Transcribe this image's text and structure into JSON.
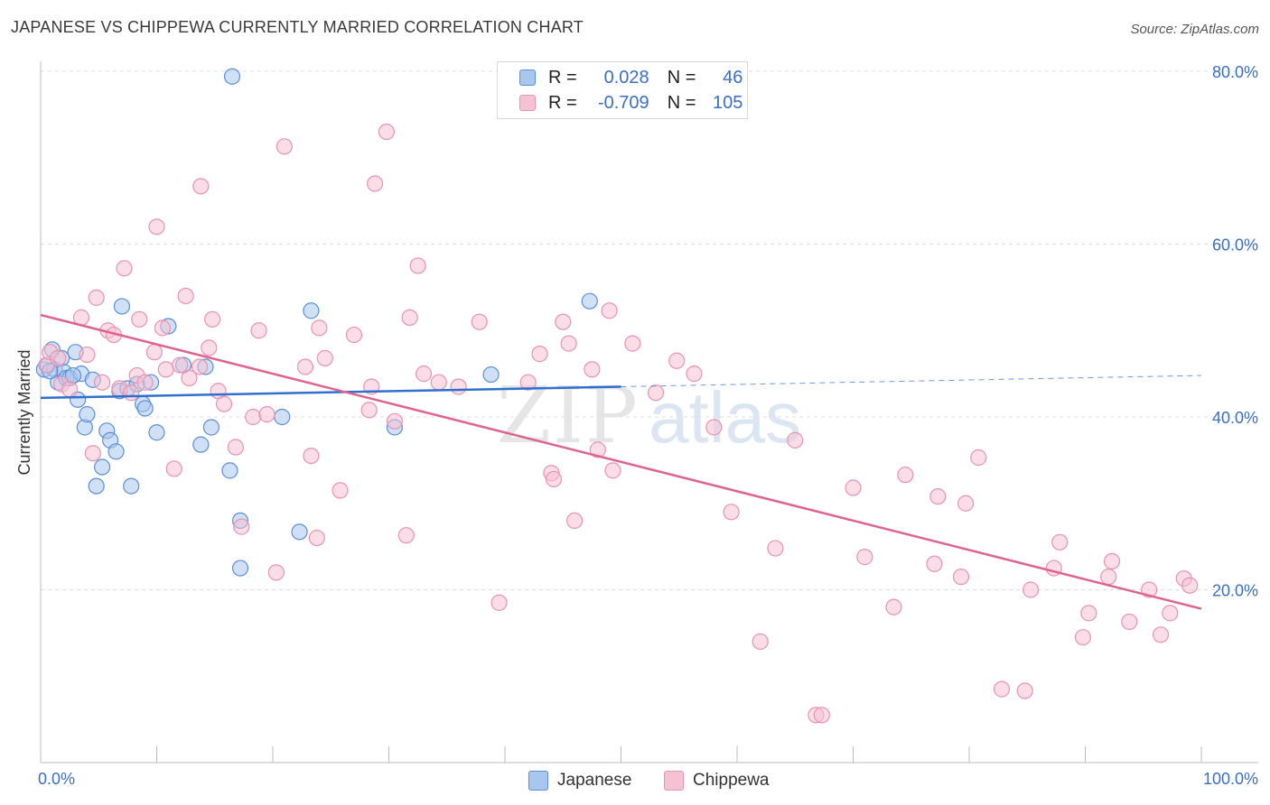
{
  "title": "JAPANESE VS CHIPPEWA CURRENTLY MARRIED CORRELATION CHART",
  "source": "Source: ZipAtlas.com",
  "legend": {
    "japanese": {
      "r_label": "R =",
      "r_value": "0.028",
      "n_label": "N =",
      "n_value": "46"
    },
    "chippewa": {
      "r_label": "R =",
      "r_value": "-0.709",
      "n_label": "N =",
      "n_value": "105"
    }
  },
  "colors": {
    "japanese_fill": "#a9c6ef",
    "japanese_stroke": "#5b8fd6",
    "japanese_line": "#2f6fcf",
    "chippewa_fill": "#f6c1d2",
    "chippewa_stroke": "#e893b0",
    "chippewa_line": "#e0638f",
    "axis_text": "#3a6fc4",
    "grid": "#dcdcdc"
  },
  "watermark": {
    "part1": "ZIP",
    "part2": "atlas"
  },
  "chart_data": {
    "type": "scatter",
    "title": "JAPANESE VS CHIPPEWA CURRENTLY MARRIED CORRELATION CHART",
    "xlabel": "",
    "ylabel": "Currently Married",
    "xlim": [
      0,
      100
    ],
    "ylim": [
      0,
      80
    ],
    "x_tick_labels": [
      "0.0%",
      "100.0%"
    ],
    "y_ticks": [
      20,
      40,
      60,
      80
    ],
    "y_tick_labels": [
      "20.0%",
      "40.0%",
      "60.0%",
      "80.0%"
    ],
    "grid": true,
    "legend_position": "bottom",
    "series": [
      {
        "name": "Japanese",
        "points": [
          [
            0.3,
            45.5
          ],
          [
            0.6,
            46
          ],
          [
            1.0,
            47.8
          ],
          [
            1.2,
            45.5
          ],
          [
            1.5,
            44
          ],
          [
            1.8,
            46.8
          ],
          [
            2.0,
            45.2
          ],
          [
            2.2,
            44.5
          ],
          [
            2.5,
            44.5
          ],
          [
            3.0,
            47.5
          ],
          [
            3.2,
            42
          ],
          [
            3.5,
            45
          ],
          [
            3.8,
            38.8
          ],
          [
            4.0,
            40.3
          ],
          [
            4.5,
            44.3
          ],
          [
            4.8,
            32
          ],
          [
            5.3,
            34.2
          ],
          [
            5.7,
            38.4
          ],
          [
            6.0,
            37.3
          ],
          [
            6.5,
            36
          ],
          [
            6.8,
            43
          ],
          [
            7.0,
            52.8
          ],
          [
            7.5,
            43.3
          ],
          [
            7.8,
            32
          ],
          [
            8.3,
            43.8
          ],
          [
            8.8,
            41.5
          ],
          [
            9.0,
            41
          ],
          [
            9.5,
            44
          ],
          [
            10.0,
            38.2
          ],
          [
            11.0,
            50.5
          ],
          [
            12.3,
            46
          ],
          [
            13.8,
            36.8
          ],
          [
            14.2,
            45.8
          ],
          [
            14.7,
            38.8
          ],
          [
            16.3,
            33.8
          ],
          [
            16.5,
            79.4
          ],
          [
            17.2,
            28
          ],
          [
            17.2,
            22.5
          ],
          [
            20.8,
            40
          ],
          [
            22.3,
            26.7
          ],
          [
            23.3,
            52.3
          ],
          [
            30.5,
            38.8
          ],
          [
            38.8,
            44.9
          ],
          [
            47.3,
            53.4
          ],
          [
            2.8,
            44.8
          ],
          [
            0.8,
            45.3
          ]
        ],
        "trend": {
          "x": [
            0,
            50
          ],
          "y": [
            42.2,
            43.5
          ],
          "dashed_to": [
            100,
            44.8
          ]
        }
      },
      {
        "name": "Chippewa",
        "points": [
          [
            0.5,
            46
          ],
          [
            0.8,
            47.5
          ],
          [
            1.5,
            46.8
          ],
          [
            1.8,
            43.8
          ],
          [
            2.5,
            43.2
          ],
          [
            3.5,
            51.5
          ],
          [
            4.0,
            47.2
          ],
          [
            4.5,
            35.8
          ],
          [
            4.8,
            53.8
          ],
          [
            5.3,
            44
          ],
          [
            5.8,
            50
          ],
          [
            6.3,
            49.5
          ],
          [
            6.8,
            43.3
          ],
          [
            7.2,
            57.2
          ],
          [
            7.8,
            42.8
          ],
          [
            8.3,
            44.8
          ],
          [
            8.5,
            51.3
          ],
          [
            9.0,
            44
          ],
          [
            9.8,
            47.5
          ],
          [
            10.0,
            62
          ],
          [
            10.5,
            50.3
          ],
          [
            10.8,
            45.5
          ],
          [
            11.5,
            34
          ],
          [
            12.0,
            46
          ],
          [
            12.5,
            54
          ],
          [
            12.8,
            44.5
          ],
          [
            13.8,
            66.7
          ],
          [
            14.5,
            48
          ],
          [
            14.8,
            51.3
          ],
          [
            15.3,
            43
          ],
          [
            15.8,
            41.5
          ],
          [
            16.8,
            36.5
          ],
          [
            17.3,
            27.3
          ],
          [
            18.3,
            40
          ],
          [
            18.8,
            50
          ],
          [
            19.5,
            40.3
          ],
          [
            20.3,
            22
          ],
          [
            21.0,
            71.3
          ],
          [
            22.8,
            45.8
          ],
          [
            23.3,
            35.5
          ],
          [
            23.8,
            26
          ],
          [
            24.0,
            50.3
          ],
          [
            24.5,
            46.8
          ],
          [
            25.8,
            31.5
          ],
          [
            27.0,
            49.5
          ],
          [
            28.3,
            40.8
          ],
          [
            28.5,
            43.5
          ],
          [
            28.8,
            67
          ],
          [
            29.8,
            73
          ],
          [
            30.5,
            39.5
          ],
          [
            31.5,
            26.3
          ],
          [
            31.8,
            51.5
          ],
          [
            32.5,
            57.5
          ],
          [
            33.0,
            45
          ],
          [
            34.3,
            44
          ],
          [
            36.0,
            43.5
          ],
          [
            37.8,
            51
          ],
          [
            39.5,
            18.5
          ],
          [
            42.0,
            44
          ],
          [
            43.0,
            47.3
          ],
          [
            44.0,
            33.5
          ],
          [
            44.2,
            32.8
          ],
          [
            45.0,
            51
          ],
          [
            45.5,
            48.5
          ],
          [
            46.0,
            28
          ],
          [
            47.5,
            45.5
          ],
          [
            48.0,
            36.2
          ],
          [
            49.0,
            52.3
          ],
          [
            49.3,
            33.8
          ],
          [
            51.0,
            48.5
          ],
          [
            53.0,
            42.8
          ],
          [
            54.8,
            46.5
          ],
          [
            56.3,
            45
          ],
          [
            58.0,
            38.8
          ],
          [
            59.5,
            29
          ],
          [
            62.0,
            14
          ],
          [
            63.3,
            24.8
          ],
          [
            65.0,
            37.3
          ],
          [
            66.8,
            5.5
          ],
          [
            67.3,
            5.5
          ],
          [
            70.0,
            31.8
          ],
          [
            71.0,
            23.8
          ],
          [
            73.5,
            18
          ],
          [
            74.5,
            33.3
          ],
          [
            77.0,
            23
          ],
          [
            77.3,
            30.8
          ],
          [
            79.3,
            21.5
          ],
          [
            79.7,
            30
          ],
          [
            80.8,
            35.3
          ],
          [
            82.8,
            8.5
          ],
          [
            84.8,
            8.3
          ],
          [
            85.3,
            20
          ],
          [
            87.3,
            22.5
          ],
          [
            87.8,
            25.5
          ],
          [
            89.8,
            14.5
          ],
          [
            90.3,
            17.3
          ],
          [
            92.0,
            21.5
          ],
          [
            92.3,
            23.3
          ],
          [
            93.8,
            16.3
          ],
          [
            95.5,
            20
          ],
          [
            96.5,
            14.8
          ],
          [
            97.3,
            17.3
          ],
          [
            98.5,
            21.3
          ],
          [
            99.0,
            20.5
          ],
          [
            13.7,
            45.8
          ]
        ],
        "trend": {
          "x": [
            0,
            100
          ],
          "y": [
            51.8,
            17.8
          ]
        }
      }
    ]
  }
}
